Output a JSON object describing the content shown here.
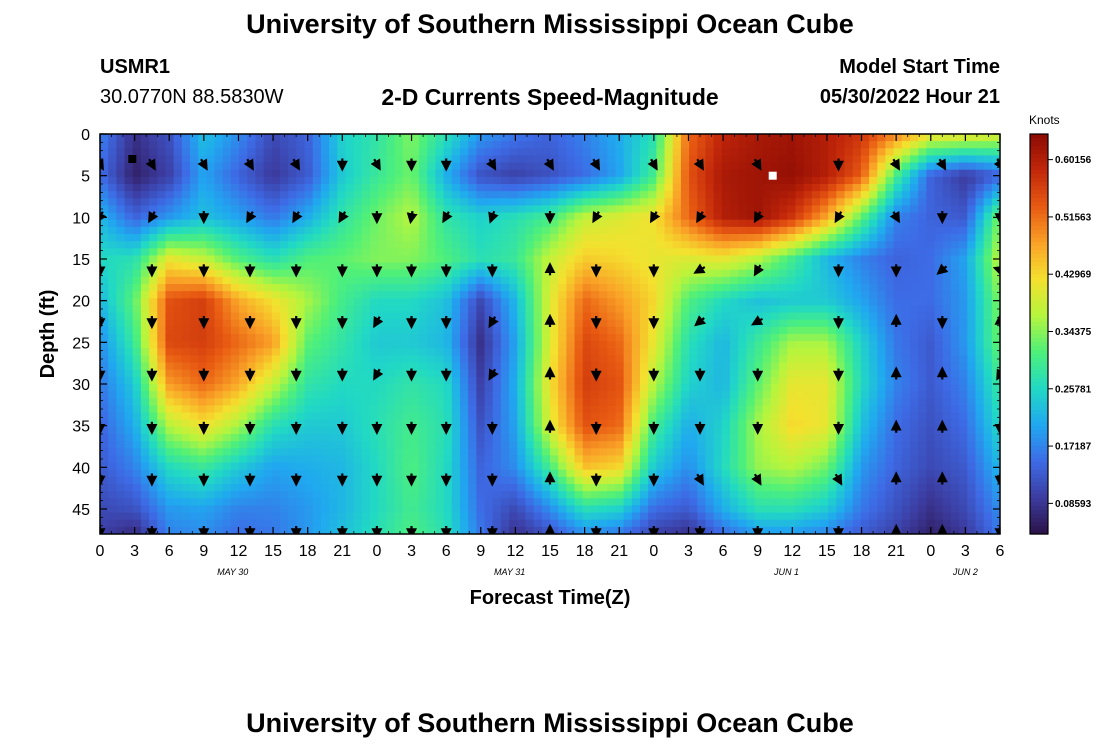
{
  "titles": {
    "main": "University of Southern Mississippi Ocean Cube",
    "repeat": "University of Southern Mississippi Ocean Cube"
  },
  "station": {
    "id": "USMR1",
    "coords": "30.0770N  88.5830W"
  },
  "model": {
    "label": "Model Start Time",
    "value": "05/30/2022 Hour 21"
  },
  "chart_data": {
    "type": "heatmap",
    "title": "2-D Currents Speed-Magnitude",
    "xlabel": "Forecast Time(Z)",
    "ylabel": "Depth (ft)",
    "x_range_hours": [
      0,
      78
    ],
    "y_range_ft": [
      0,
      48
    ],
    "x_ticks": [
      "0",
      "3",
      "6",
      "9",
      "12",
      "15",
      "18",
      "21",
      "0",
      "3",
      "6",
      "9",
      "12",
      "15",
      "18",
      "21",
      "0",
      "3",
      "6",
      "9",
      "12",
      "15",
      "18",
      "21",
      "0",
      "3",
      "6"
    ],
    "date_labels": [
      {
        "text": "MAY 30",
        "hour": 11.5
      },
      {
        "text": "MAY 31",
        "hour": 35.5
      },
      {
        "text": "JUN 1",
        "hour": 59.5
      },
      {
        "text": "JUN 2",
        "hour": 75
      }
    ],
    "y_ticks": [
      0,
      5,
      10,
      15,
      20,
      25,
      30,
      35,
      40,
      45
    ],
    "colorbar": {
      "unit": "Knots",
      "ticks": [
        "0.60156",
        "0.51563",
        "0.42969",
        "0.34375",
        "0.25781",
        "0.17187",
        "0.08593"
      ],
      "min": 0.04,
      "max": 0.64,
      "colors": [
        "#2b1248",
        "#3c3ca0",
        "#3d6be6",
        "#20a8f0",
        "#21d9c4",
        "#4ef07a",
        "#b5f53d",
        "#f4e12e",
        "#f9a127",
        "#e85a12",
        "#c2270a",
        "#8b0a03"
      ]
    },
    "speed_field": {
      "hours": [
        0,
        3,
        6,
        9,
        12,
        15,
        18,
        21,
        24,
        27,
        30,
        33,
        36,
        39,
        42,
        45,
        48,
        51,
        54,
        57,
        60,
        63,
        66,
        69,
        72,
        75,
        78
      ],
      "depths_ft": [
        0,
        5,
        10,
        15,
        20,
        25,
        30,
        35,
        40,
        45,
        48
      ],
      "speed_knots": [
        [
          0.17,
          0.08,
          0.12,
          0.23,
          0.18,
          0.11,
          0.14,
          0.25,
          0.28,
          0.34,
          0.27,
          0.19,
          0.16,
          0.14,
          0.17,
          0.21,
          0.27,
          0.52,
          0.59,
          0.61,
          0.62,
          0.6,
          0.57,
          0.5,
          0.42,
          0.42,
          0.4
        ],
        [
          0.15,
          0.06,
          0.1,
          0.2,
          0.14,
          0.09,
          0.13,
          0.24,
          0.29,
          0.33,
          0.21,
          0.12,
          0.1,
          0.12,
          0.15,
          0.2,
          0.3,
          0.54,
          0.61,
          0.62,
          0.63,
          0.6,
          0.53,
          0.3,
          0.14,
          0.09,
          0.14
        ],
        [
          0.22,
          0.14,
          0.19,
          0.23,
          0.2,
          0.16,
          0.21,
          0.28,
          0.33,
          0.37,
          0.28,
          0.25,
          0.27,
          0.3,
          0.38,
          0.4,
          0.42,
          0.52,
          0.6,
          0.62,
          0.57,
          0.47,
          0.32,
          0.17,
          0.14,
          0.13,
          0.34
        ],
        [
          0.26,
          0.27,
          0.41,
          0.38,
          0.31,
          0.27,
          0.31,
          0.32,
          0.34,
          0.34,
          0.31,
          0.27,
          0.29,
          0.38,
          0.44,
          0.43,
          0.41,
          0.4,
          0.41,
          0.37,
          0.3,
          0.22,
          0.17,
          0.14,
          0.15,
          0.2,
          0.38
        ],
        [
          0.22,
          0.32,
          0.54,
          0.56,
          0.47,
          0.42,
          0.36,
          0.3,
          0.26,
          0.26,
          0.23,
          0.11,
          0.22,
          0.4,
          0.52,
          0.48,
          0.43,
          0.31,
          0.26,
          0.23,
          0.24,
          0.24,
          0.2,
          0.15,
          0.15,
          0.19,
          0.34
        ],
        [
          0.18,
          0.29,
          0.55,
          0.56,
          0.52,
          0.48,
          0.32,
          0.28,
          0.24,
          0.24,
          0.22,
          0.08,
          0.2,
          0.4,
          0.55,
          0.52,
          0.41,
          0.27,
          0.22,
          0.29,
          0.36,
          0.36,
          0.25,
          0.16,
          0.13,
          0.19,
          0.33
        ],
        [
          0.16,
          0.24,
          0.48,
          0.52,
          0.47,
          0.38,
          0.28,
          0.26,
          0.26,
          0.28,
          0.26,
          0.1,
          0.21,
          0.42,
          0.56,
          0.54,
          0.37,
          0.25,
          0.22,
          0.32,
          0.41,
          0.41,
          0.26,
          0.17,
          0.13,
          0.17,
          0.29
        ],
        [
          0.14,
          0.21,
          0.37,
          0.42,
          0.36,
          0.27,
          0.24,
          0.24,
          0.27,
          0.3,
          0.27,
          0.12,
          0.2,
          0.4,
          0.54,
          0.52,
          0.3,
          0.21,
          0.25,
          0.36,
          0.43,
          0.41,
          0.23,
          0.15,
          0.12,
          0.15,
          0.26
        ],
        [
          0.13,
          0.17,
          0.26,
          0.29,
          0.24,
          0.2,
          0.21,
          0.22,
          0.26,
          0.31,
          0.26,
          0.14,
          0.18,
          0.3,
          0.45,
          0.43,
          0.24,
          0.18,
          0.26,
          0.35,
          0.37,
          0.33,
          0.19,
          0.14,
          0.11,
          0.13,
          0.22
        ],
        [
          0.11,
          0.12,
          0.19,
          0.2,
          0.17,
          0.17,
          0.19,
          0.22,
          0.26,
          0.3,
          0.26,
          0.15,
          0.11,
          0.18,
          0.27,
          0.25,
          0.15,
          0.13,
          0.21,
          0.27,
          0.27,
          0.24,
          0.16,
          0.12,
          0.08,
          0.11,
          0.18
        ],
        [
          0.1,
          0.07,
          0.17,
          0.18,
          0.15,
          0.16,
          0.19,
          0.23,
          0.27,
          0.31,
          0.27,
          0.16,
          0.08,
          0.12,
          0.18,
          0.16,
          0.1,
          0.08,
          0.15,
          0.19,
          0.19,
          0.17,
          0.13,
          0.1,
          0.06,
          0.09,
          0.16
        ]
      ]
    },
    "vector_columns_hours": [
      0,
      4.5,
      9,
      13,
      17,
      21,
      24,
      27,
      30,
      34,
      39,
      43,
      48,
      52,
      57,
      64,
      69,
      73,
      78
    ],
    "vector_rows_ft": [
      3.6,
      9.9,
      16.3,
      22.5,
      28.8,
      35.2,
      41.4,
      47.7
    ],
    "vector_directions_deg": [
      [
        60,
        60,
        60,
        60,
        60,
        90,
        60,
        90,
        90,
        60,
        60,
        60,
        60,
        60,
        60,
        90,
        60,
        60,
        60
      ],
      [
        120,
        120,
        90,
        120,
        120,
        120,
        90,
        100,
        120,
        110,
        90,
        120,
        120,
        120,
        120,
        120,
        60,
        90,
        90
      ],
      [
        90,
        90,
        90,
        90,
        90,
        90,
        90,
        90,
        90,
        90,
        270,
        90,
        90,
        150,
        120,
        90,
        90,
        140,
        200
      ],
      [
        90,
        90,
        90,
        90,
        90,
        90,
        120,
        90,
        90,
        120,
        270,
        90,
        90,
        140,
        150,
        90,
        270,
        90,
        270
      ],
      [
        90,
        90,
        90,
        90,
        90,
        90,
        120,
        90,
        90,
        120,
        270,
        90,
        90,
        90,
        90,
        90,
        270,
        270,
        120
      ],
      [
        90,
        90,
        90,
        90,
        90,
        90,
        90,
        90,
        90,
        90,
        270,
        90,
        90,
        90,
        90,
        90,
        270,
        270,
        90
      ],
      [
        90,
        90,
        90,
        90,
        90,
        90,
        90,
        90,
        90,
        90,
        270,
        90,
        90,
        60,
        60,
        60,
        270,
        270,
        90
      ],
      [
        90,
        90,
        90,
        90,
        90,
        90,
        90,
        90,
        90,
        90,
        270,
        90,
        90,
        90,
        90,
        90,
        270,
        270,
        90
      ]
    ],
    "markers": [
      {
        "hour": 2.8,
        "depth_ft": 3,
        "color": "#000000"
      },
      {
        "hour": 58.3,
        "depth_ft": 5,
        "color": "#ffffff"
      }
    ]
  }
}
